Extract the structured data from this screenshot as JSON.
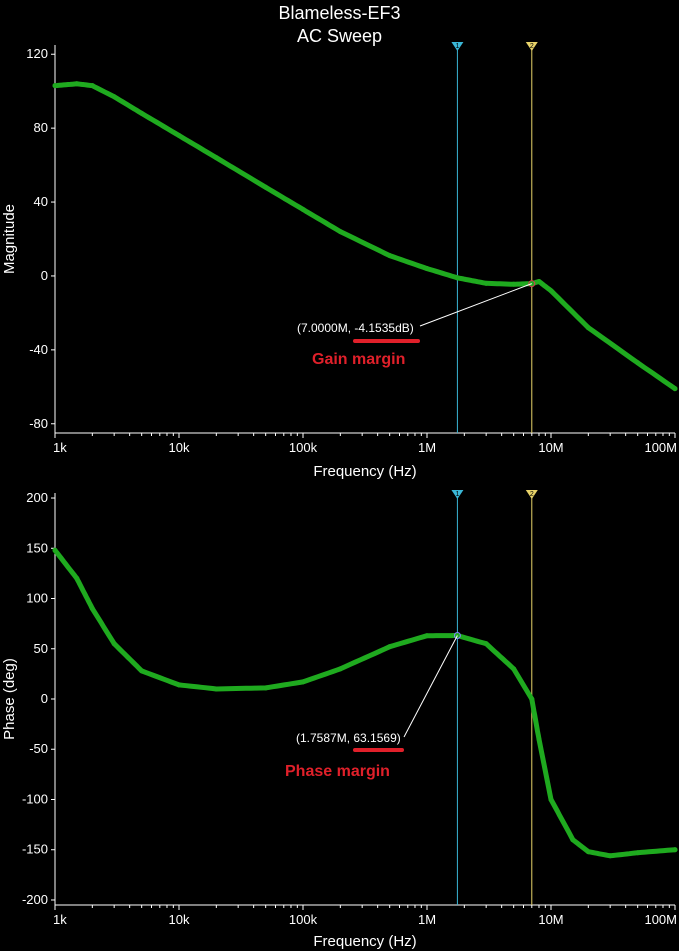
{
  "title": {
    "line1": "Blameless-EF3",
    "line2": "AC Sweep"
  },
  "colors": {
    "trace": "#1faa1f",
    "cursor1": "#3ab6d6",
    "cursor2": "#e8d36a",
    "frame": "#ffffff",
    "grid_tick": "#ffffff",
    "margin_label": "#e0202a",
    "background": "#000000"
  },
  "cursors": [
    {
      "id": "1",
      "x": 1758700
    },
    {
      "id": "2",
      "x": 7000000
    }
  ],
  "x_tick_labels": [
    "1k",
    "10k",
    "100k",
    "1M",
    "10M",
    "100M"
  ],
  "chart_data": [
    {
      "type": "line",
      "xlabel": "Frequency (Hz)",
      "ylabel": "Magnitude",
      "xscale": "log",
      "xlim": [
        1000,
        100000000
      ],
      "ylim": [
        -85,
        125
      ],
      "yticks": [
        120,
        80,
        40,
        0,
        -40,
        -80
      ],
      "x": [
        1000,
        1500,
        2000,
        3000,
        5000,
        10000,
        20000,
        50000,
        100000,
        200000,
        500000,
        1000000,
        1758700,
        3000000,
        5000000,
        7000000,
        8000000,
        10000000,
        20000000,
        50000000,
        100000000
      ],
      "series": [
        {
          "values": [
            103,
            104,
            103,
            97,
            88,
            76,
            64,
            48,
            36,
            24,
            11,
            4,
            -1,
            -4,
            -4.5,
            -4.15,
            -3,
            -8,
            -28,
            -47,
            -61
          ]
        }
      ],
      "annotation": {
        "text": "(7.0000M, -4.1535dB)",
        "x": 7000000,
        "y": -4.1535
      },
      "margin_label": "Gain margin"
    },
    {
      "type": "line",
      "xlabel": "Frequency (Hz)",
      "ylabel": "Phase (deg)",
      "xscale": "log",
      "xlim": [
        1000,
        100000000
      ],
      "ylim": [
        -205,
        205
      ],
      "yticks": [
        200,
        150,
        100,
        50,
        0,
        -50,
        -100,
        -150,
        -200
      ],
      "x": [
        1000,
        1500,
        2000,
        3000,
        5000,
        10000,
        20000,
        50000,
        100000,
        200000,
        500000,
        1000000,
        1758700,
        3000000,
        5000000,
        7000000,
        8000000,
        10000000,
        15000000,
        20000000,
        30000000,
        50000000,
        100000000
      ],
      "series": [
        {
          "values": [
            148,
            120,
            90,
            55,
            28,
            14,
            10,
            11,
            17,
            30,
            52,
            63,
            63.16,
            55,
            30,
            0,
            -40,
            -100,
            -140,
            -152,
            -156,
            -153,
            -150
          ]
        }
      ],
      "annotation": {
        "text": "(1.7587M, 63.1569)",
        "x": 1758700,
        "y": 63.1569
      },
      "margin_label": "Phase margin"
    }
  ]
}
